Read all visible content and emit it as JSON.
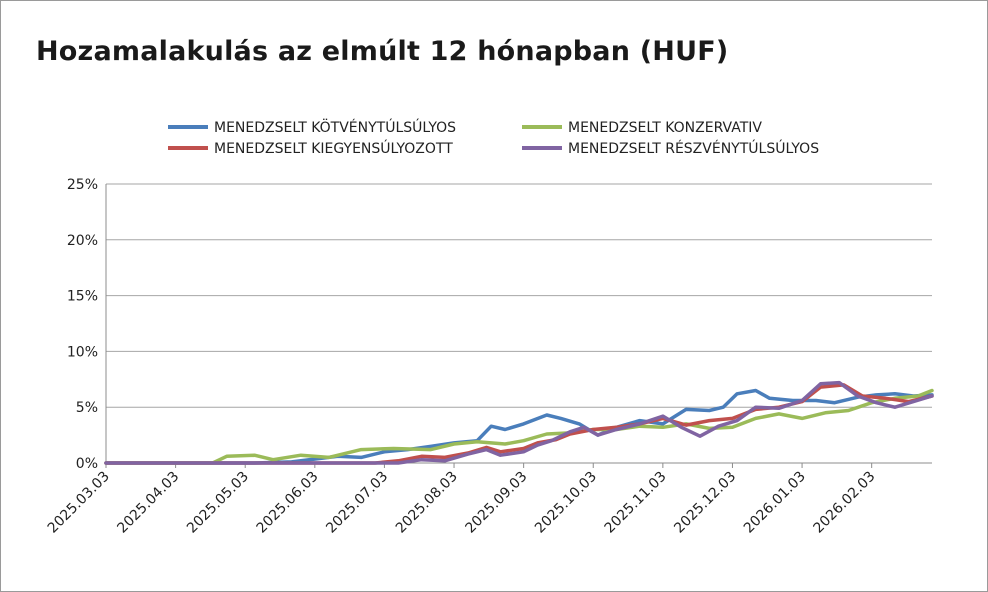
{
  "chart_data": {
    "type": "line",
    "title": "Hozamalakulás az elmúlt 12 hónapban (HUF)",
    "xlabel": "",
    "ylabel": "",
    "ylim": [
      0,
      25
    ],
    "y_ticks": [
      "0%",
      "5%",
      "10%",
      "15%",
      "20%",
      "25%"
    ],
    "x_ticks": [
      "2025.03.03",
      "2025.04.03",
      "2025.05.03",
      "2025.06.03",
      "2025.07.03",
      "2025.08.03",
      "2025.09.03",
      "2025.10.03",
      "2025.11.03",
      "2025.12.03",
      "2026.01.03",
      "2026.02.03"
    ],
    "grid": "horizontal",
    "legend_position": "top",
    "series": [
      {
        "name": "MENEDZSELT KÖTVÉNYTÚLSÚLYOS",
        "color": "#4a7ebb",
        "points": [
          [
            0,
            0
          ],
          [
            1.5,
            0
          ],
          [
            2.3,
            0
          ],
          [
            3.2,
            0
          ],
          [
            4.0,
            0.1
          ],
          [
            4.6,
            0.4
          ],
          [
            5.0,
            0.6
          ],
          [
            5.5,
            0.5
          ],
          [
            6.0,
            1.0
          ],
          [
            6.5,
            1.2
          ],
          [
            7.0,
            1.5
          ],
          [
            7.5,
            1.8
          ],
          [
            8.0,
            2.0
          ],
          [
            8.3,
            3.3
          ],
          [
            8.6,
            3.0
          ],
          [
            9.0,
            3.5
          ],
          [
            9.5,
            4.3
          ],
          [
            9.8,
            4.0
          ],
          [
            10.2,
            3.5
          ],
          [
            10.6,
            2.5
          ],
          [
            11.0,
            3.2
          ],
          [
            11.5,
            3.8
          ],
          [
            12.0,
            3.5
          ],
          [
            12.5,
            4.8
          ],
          [
            13.0,
            4.7
          ],
          [
            13.3,
            5.0
          ],
          [
            13.6,
            6.2
          ],
          [
            14.0,
            6.5
          ],
          [
            14.3,
            5.8
          ],
          [
            14.8,
            5.6
          ],
          [
            15.3,
            5.6
          ],
          [
            15.7,
            5.4
          ],
          [
            16.2,
            5.9
          ],
          [
            16.6,
            6.1
          ],
          [
            17.0,
            6.2
          ],
          [
            17.4,
            6.0
          ],
          [
            17.8,
            6.1
          ]
        ]
      },
      {
        "name": "MENEDZSELT KONZERVATIV",
        "color": "#9bbb59",
        "points": [
          [
            0,
            0
          ],
          [
            1.5,
            0
          ],
          [
            2.3,
            0
          ],
          [
            2.6,
            0.6
          ],
          [
            3.2,
            0.7
          ],
          [
            3.6,
            0.3
          ],
          [
            4.2,
            0.7
          ],
          [
            4.8,
            0.5
          ],
          [
            5.5,
            1.2
          ],
          [
            6.2,
            1.3
          ],
          [
            7.0,
            1.2
          ],
          [
            7.5,
            1.7
          ],
          [
            8.0,
            1.9
          ],
          [
            8.6,
            1.7
          ],
          [
            9.0,
            2.0
          ],
          [
            9.5,
            2.6
          ],
          [
            10.0,
            2.7
          ],
          [
            10.5,
            3.0
          ],
          [
            11.0,
            3.0
          ],
          [
            11.5,
            3.3
          ],
          [
            12.0,
            3.2
          ],
          [
            12.5,
            3.5
          ],
          [
            13.0,
            3.1
          ],
          [
            13.5,
            3.2
          ],
          [
            14.0,
            4.0
          ],
          [
            14.5,
            4.4
          ],
          [
            15.0,
            4.0
          ],
          [
            15.5,
            4.5
          ],
          [
            16.0,
            4.7
          ],
          [
            16.5,
            5.4
          ],
          [
            17.0,
            5.8
          ],
          [
            17.5,
            6.0
          ],
          [
            17.8,
            6.5
          ]
        ]
      },
      {
        "name": "MENEDZSELT KIEGYENSÚLYOZOTT",
        "color": "#c0504d",
        "points": [
          [
            0,
            0
          ],
          [
            5.8,
            0
          ],
          [
            6.3,
            0.2
          ],
          [
            6.8,
            0.6
          ],
          [
            7.3,
            0.5
          ],
          [
            7.8,
            0.9
          ],
          [
            8.2,
            1.4
          ],
          [
            8.5,
            1.0
          ],
          [
            9.0,
            1.3
          ],
          [
            9.3,
            1.8
          ],
          [
            9.7,
            2.1
          ],
          [
            10.0,
            2.6
          ],
          [
            10.5,
            3.0
          ],
          [
            11.0,
            3.2
          ],
          [
            11.5,
            3.5
          ],
          [
            12.0,
            4.0
          ],
          [
            12.5,
            3.4
          ],
          [
            13.0,
            3.8
          ],
          [
            13.5,
            4.0
          ],
          [
            14.0,
            4.8
          ],
          [
            14.5,
            5.0
          ],
          [
            15.0,
            5.5
          ],
          [
            15.4,
            6.8
          ],
          [
            15.9,
            7.0
          ],
          [
            16.3,
            6.0
          ],
          [
            16.8,
            5.8
          ],
          [
            17.3,
            5.5
          ],
          [
            17.8,
            6.0
          ]
        ]
      },
      {
        "name": "MENEDZSELT RÉSZVÉNYTÚLSÚLYOS",
        "color": "#8064a2",
        "points": [
          [
            0,
            0
          ],
          [
            6.3,
            0
          ],
          [
            6.8,
            0.3
          ],
          [
            7.3,
            0.2
          ],
          [
            7.8,
            0.8
          ],
          [
            8.2,
            1.2
          ],
          [
            8.5,
            0.7
          ],
          [
            9.0,
            1.0
          ],
          [
            9.3,
            1.6
          ],
          [
            9.6,
            2.0
          ],
          [
            10.0,
            2.8
          ],
          [
            10.3,
            3.2
          ],
          [
            10.6,
            2.5
          ],
          [
            11.0,
            3.0
          ],
          [
            11.5,
            3.5
          ],
          [
            12.0,
            4.2
          ],
          [
            12.4,
            3.2
          ],
          [
            12.8,
            2.4
          ],
          [
            13.2,
            3.3
          ],
          [
            13.6,
            3.8
          ],
          [
            14.0,
            5.0
          ],
          [
            14.5,
            4.9
          ],
          [
            15.0,
            5.6
          ],
          [
            15.4,
            7.1
          ],
          [
            15.8,
            7.2
          ],
          [
            16.2,
            6.0
          ],
          [
            16.6,
            5.4
          ],
          [
            17.0,
            5.0
          ],
          [
            17.4,
            5.5
          ],
          [
            17.8,
            6.0
          ]
        ]
      }
    ]
  }
}
